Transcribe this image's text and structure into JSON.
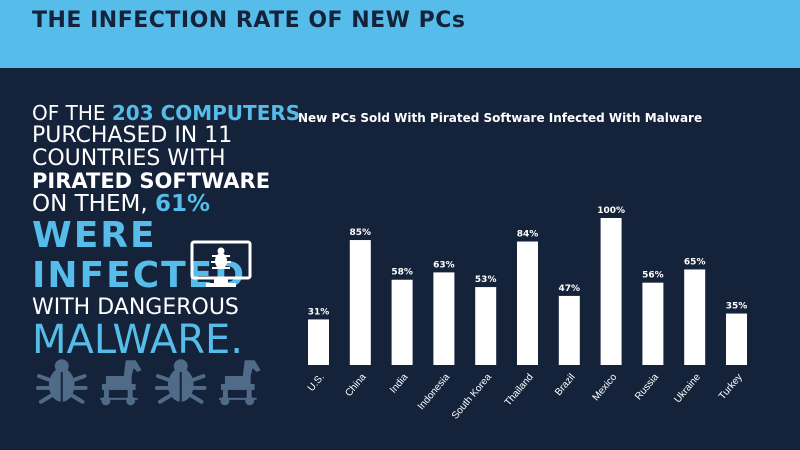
{
  "header": {
    "title": "THE INFECTION RATE OF NEW PCs"
  },
  "stat": {
    "line1_a": "Of the ",
    "line1_b": "203 computers",
    "line2": "purchased in 11",
    "line3": "countries with",
    "line4": "pirated software",
    "line5_a": "on them, ",
    "line5_b": "61%",
    "line6": "were",
    "line7": "infected",
    "line8": "with dangerous",
    "line9": "malware."
  },
  "icons": [
    "bug-icon",
    "trojan-horse-icon",
    "bug-icon",
    "trojan-horse-icon"
  ],
  "colors": {
    "header": "#56bce9",
    "background": "#14223a",
    "accent": "#56bce9",
    "bar": "#ffffff",
    "icon": "#4f6b87"
  },
  "chart_data": {
    "type": "bar",
    "title": "New PCs Sold With Pirated Software Infected With Malware",
    "categories": [
      "U.S.",
      "China",
      "India",
      "Indonesia",
      "South Korea",
      "Thailand",
      "Brazil",
      "Mexico",
      "Russia",
      "Ukraine",
      "Turkey"
    ],
    "values": [
      31,
      85,
      58,
      63,
      53,
      84,
      47,
      100,
      56,
      65,
      35
    ],
    "labels": [
      "31%",
      "85%",
      "58%",
      "63%",
      "53%",
      "84%",
      "47%",
      "100%",
      "56%",
      "65%",
      "35%"
    ],
    "ylim": [
      0,
      100
    ],
    "xlabel": "",
    "ylabel": "",
    "grid": false,
    "legend": "none"
  }
}
